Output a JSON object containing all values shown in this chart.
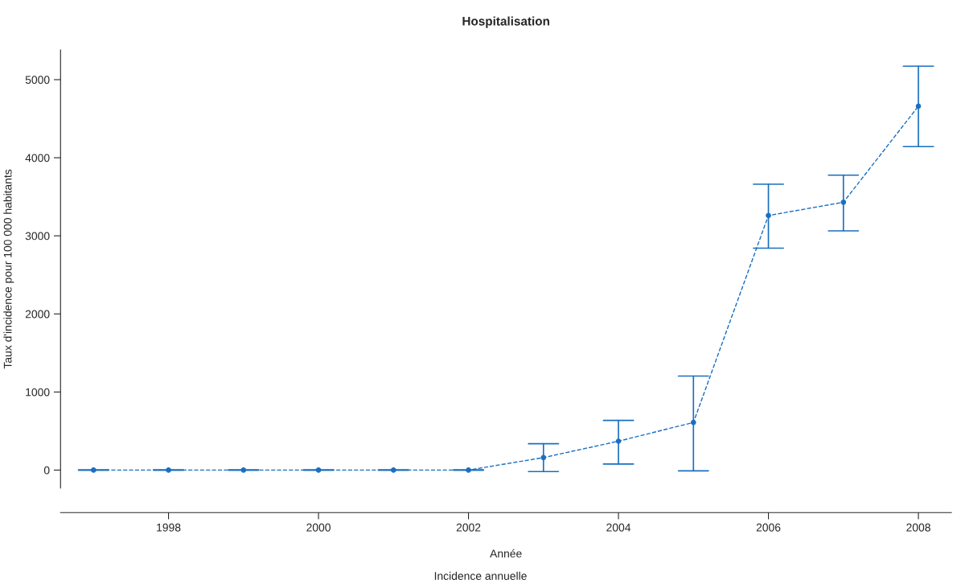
{
  "chart_data": {
    "type": "line",
    "title": "Hospitalisation",
    "subtitle": "Incidence annuelle",
    "xlabel": "Année",
    "ylabel": "Taux d'incidence pour 100 000 habitants",
    "x": [
      1997,
      1998,
      1999,
      2000,
      2001,
      2002,
      2003,
      2004,
      2005,
      2006,
      2007,
      2008
    ],
    "series": [
      {
        "color": "#1a6fc0",
        "values": [
          0,
          0,
          0,
          0,
          0,
          0,
          160,
          370,
          610,
          3260,
          3430,
          4660
        ],
        "errors": [
          [
            0,
            0
          ],
          [
            0,
            0
          ],
          [
            0,
            0
          ],
          [
            0,
            0
          ],
          [
            0,
            0
          ],
          [
            0,
            0
          ],
          [
            -19,
            337
          ],
          [
            77,
            636
          ],
          [
            -10,
            1204
          ],
          [
            2842,
            3661
          ],
          [
            3064,
            3777
          ],
          [
            4143,
            5173
          ]
        ]
      }
    ],
    "xlim": [
      1996.56,
      2008.44
    ],
    "ylim": [
      -230,
      5380
    ],
    "xticks": [
      1998,
      2000,
      2002,
      2004,
      2006,
      2008
    ],
    "yticks": [
      0,
      1000,
      2000,
      3000,
      4000,
      5000
    ],
    "marker": "circle",
    "line_style": "dashed",
    "grid": false,
    "legend": false
  }
}
